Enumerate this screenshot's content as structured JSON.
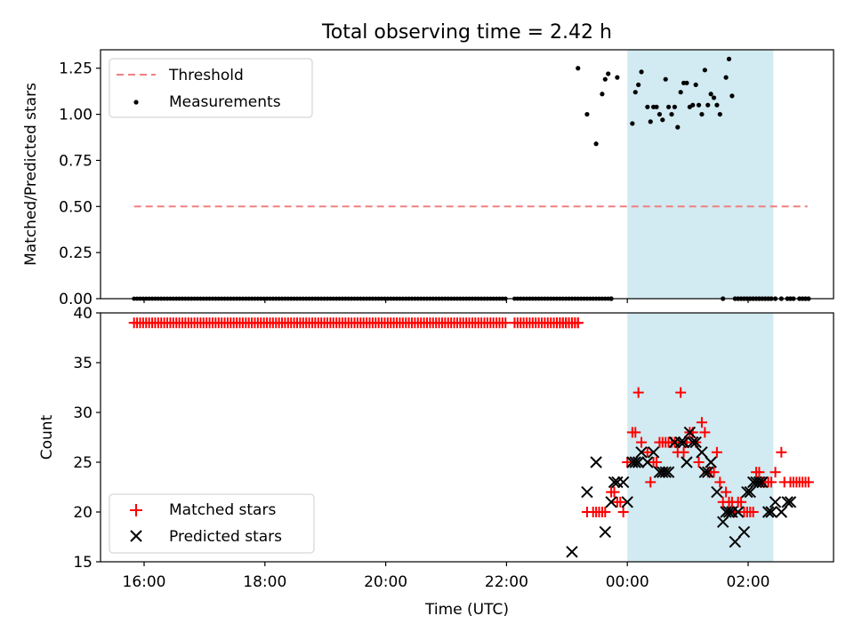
{
  "chart_data": [
    {
      "type": "scatter",
      "title": "Total observing time = 2.42 h",
      "xlabel": "",
      "ylabel": "Matched/Predicted stars",
      "ylim": [
        0,
        1.35
      ],
      "yticks": [
        "0.00",
        "0.25",
        "0.50",
        "0.75",
        "1.00",
        "1.25"
      ],
      "legend": {
        "placement": "top-left",
        "entries": [
          "Threshold",
          "Measurements"
        ]
      },
      "threshold": {
        "name": "Threshold",
        "y": 0.5,
        "x_start": "15:50",
        "x_end": "02:59",
        "color": "#f08080"
      },
      "highlight_span": {
        "x_start": "00:00",
        "x_end": "02:25",
        "color": "#add8e6"
      },
      "series": [
        {
          "name": "Measurements",
          "zero_span": {
            "x_start": "15:50",
            "x_end": "23:46",
            "y": 0
          },
          "x": [
            "23:11",
            "23:20",
            "23:29",
            "23:35",
            "23:38",
            "23:41",
            "23:44",
            "23:50",
            "00:05",
            "00:08",
            "00:11",
            "00:14",
            "00:20",
            "00:23",
            "00:26",
            "00:29",
            "00:32",
            "00:35",
            "00:38",
            "00:41",
            "00:44",
            "00:47",
            "00:50",
            "00:53",
            "00:56",
            "00:59",
            "01:02",
            "01:05",
            "01:08",
            "01:11",
            "01:14",
            "01:17",
            "01:20",
            "01:23",
            "01:26",
            "01:29",
            "01:32",
            "01:35",
            "01:38",
            "01:41",
            "01:44",
            "01:47",
            "01:50",
            "01:53",
            "01:56",
            "01:59",
            "02:02",
            "02:05",
            "02:08",
            "02:11",
            "02:14",
            "02:17",
            "02:20",
            "02:23",
            "02:27",
            "02:33",
            "02:39",
            "02:42",
            "02:45",
            "02:51",
            "02:54",
            "02:57",
            "03:00"
          ],
          "y": [
            1.25,
            1.0,
            0.84,
            1.11,
            1.19,
            1.22,
            0.0,
            1.2,
            0.95,
            1.12,
            1.16,
            1.23,
            1.04,
            0.96,
            1.04,
            1.04,
            1.0,
            0.97,
            1.19,
            1.04,
            1.0,
            1.04,
            0.93,
            1.12,
            1.17,
            1.17,
            1.04,
            1.05,
            1.16,
            1.05,
            1.0,
            1.24,
            1.05,
            1.11,
            1.09,
            1.05,
            1.0,
            0.0,
            1.2,
            1.3,
            1.1,
            0.0,
            0.0,
            0.0,
            0.0,
            0.0,
            0.0,
            0.0,
            0.0,
            0.0,
            0.0,
            0.0,
            0.0,
            0.0,
            0.0,
            0.0,
            0.0,
            0.0,
            0.0,
            0.0,
            0.0,
            0.0,
            0.0
          ]
        }
      ]
    },
    {
      "type": "scatter",
      "title": "",
      "xlabel": "Time (UTC)",
      "ylabel": "Count",
      "ylim": [
        15,
        40
      ],
      "yticks": [
        "15",
        "20",
        "25",
        "30",
        "35",
        "40"
      ],
      "xticks": [
        "16:00",
        "18:00",
        "20:00",
        "22:00",
        "00:00",
        "02:00"
      ],
      "legend": {
        "placement": "bottom-left",
        "entries": [
          "Matched stars",
          "Predicted stars"
        ]
      },
      "highlight_span": {
        "x_start": "00:00",
        "x_end": "02:25",
        "color": "#add8e6"
      },
      "series": [
        {
          "name": "Matched stars",
          "color": "#ff0000",
          "constant_run": {
            "x_start": "15:50",
            "x_end": "23:11",
            "y": 39
          },
          "x": [
            "22:50",
            "22:53",
            "22:56",
            "22:59",
            "23:02",
            "23:05",
            "23:08",
            "23:11",
            "23:20",
            "23:26",
            "23:29",
            "23:32",
            "23:35",
            "23:38",
            "23:44",
            "23:47",
            "23:50",
            "23:53",
            "23:56",
            "00:00",
            "00:05",
            "00:08",
            "00:11",
            "00:14",
            "00:20",
            "00:23",
            "00:26",
            "00:29",
            "00:32",
            "00:35",
            "00:38",
            "00:41",
            "00:44",
            "00:47",
            "00:50",
            "00:53",
            "00:56",
            "00:59",
            "01:02",
            "01:05",
            "01:08",
            "01:11",
            "01:14",
            "01:17",
            "01:20",
            "01:23",
            "01:26",
            "01:29",
            "01:32",
            "01:35",
            "01:38",
            "01:41",
            "01:44",
            "01:47",
            "01:50",
            "01:53",
            "01:56",
            "01:59",
            "02:02",
            "02:05",
            "02:08",
            "02:11",
            "02:14",
            "02:17",
            "02:20",
            "02:23",
            "02:27",
            "02:33",
            "02:36",
            "02:42",
            "02:45",
            "02:48",
            "02:51",
            "02:54",
            "02:57",
            "03:00"
          ],
          "y": [
            39,
            39,
            39,
            39,
            39,
            39,
            39,
            39,
            20,
            20,
            20,
            20,
            20,
            20,
            22,
            22,
            21,
            21,
            20,
            25,
            28,
            28,
            32,
            27,
            26,
            23,
            25,
            25,
            27,
            27,
            27,
            27,
            27,
            27,
            26,
            32,
            26,
            27,
            28,
            28,
            27,
            25,
            29,
            28,
            24,
            24,
            24,
            26,
            23,
            21,
            22,
            21,
            21,
            20,
            21,
            21,
            20,
            20,
            20,
            20,
            24,
            24,
            23,
            23,
            23,
            23,
            24,
            26,
            23,
            23,
            23,
            23,
            23,
            23,
            23,
            23
          ]
        },
        {
          "name": "Predicted stars",
          "color": "#000000",
          "x": [
            "23:05",
            "23:20",
            "23:29",
            "23:38",
            "23:44",
            "23:47",
            "23:50",
            "23:56",
            "00:00",
            "00:05",
            "00:08",
            "00:11",
            "00:14",
            "00:20",
            "00:26",
            "00:32",
            "00:35",
            "00:38",
            "00:41",
            "00:47",
            "00:53",
            "00:56",
            "00:59",
            "01:02",
            "01:05",
            "01:08",
            "01:14",
            "01:17",
            "01:20",
            "01:23",
            "01:29",
            "01:35",
            "01:38",
            "01:41",
            "01:44",
            "01:47",
            "01:50",
            "01:56",
            "01:59",
            "02:02",
            "02:05",
            "02:08",
            "02:11",
            "02:14",
            "02:20",
            "02:23",
            "02:27",
            "02:33",
            "02:39",
            "02:42"
          ],
          "y": [
            16,
            22,
            25,
            18,
            21,
            23,
            23,
            23,
            21,
            25,
            25,
            25,
            26,
            25,
            26,
            24,
            24,
            24,
            24,
            27,
            27,
            27,
            25,
            28,
            27,
            27,
            26,
            24,
            24,
            25,
            22,
            19,
            20,
            20,
            20,
            17,
            20,
            18,
            22,
            22,
            23,
            23,
            23,
            23,
            20,
            20,
            21,
            20,
            21,
            21
          ]
        }
      ]
    }
  ]
}
